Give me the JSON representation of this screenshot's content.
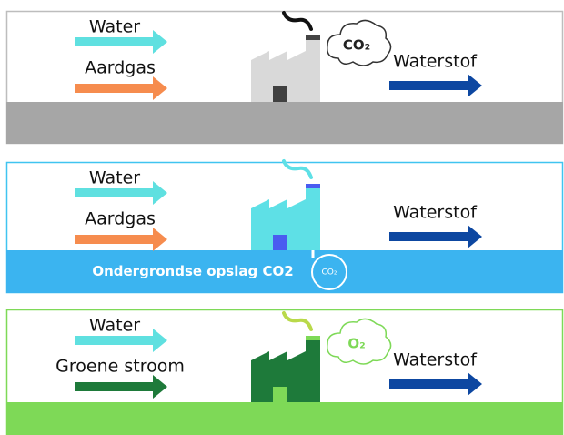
{
  "panels": [
    {
      "inputs": [
        "Water",
        "Aardgas"
      ],
      "output": "Waterstof",
      "cloud": "CO₂"
    },
    {
      "inputs": [
        "Water",
        "Aardgas"
      ],
      "output": "Waterstof",
      "ground": "Ondergrondse opslag CO2",
      "storage": "CO₂"
    },
    {
      "inputs": [
        "Water",
        "Groene stroom"
      ],
      "output": "Waterstof",
      "cloud": "O₂"
    }
  ]
}
